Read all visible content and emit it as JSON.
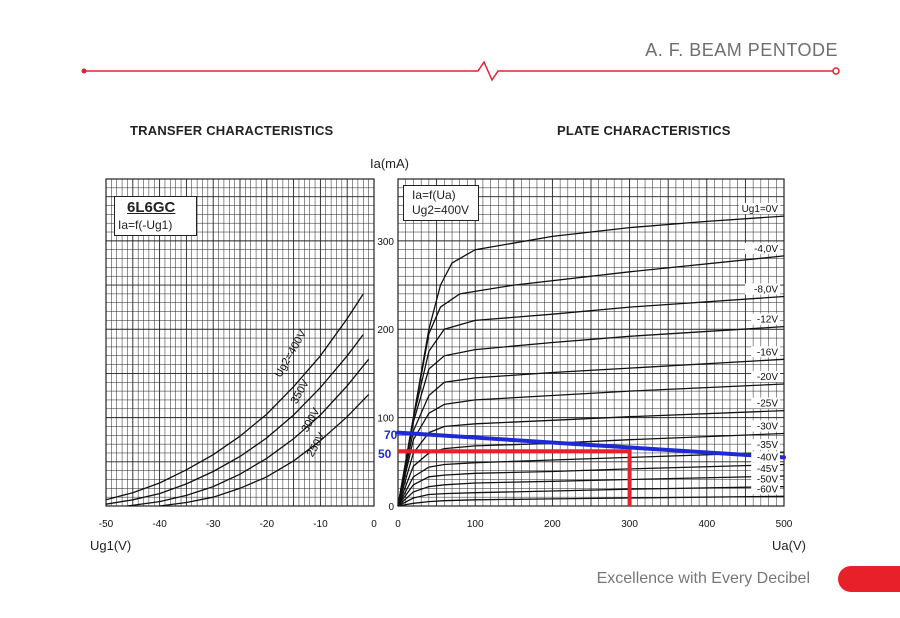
{
  "header": {
    "title": "A. F. BEAM PENTODE",
    "accent": "#e8202a"
  },
  "footer": {
    "tagline": "Excellence with Every Decibel"
  },
  "chart_data": [
    {
      "type": "line",
      "title": "TRANSFER CHARACTERISTICS",
      "tube": "6L6GC",
      "formula": "Ia=f(-Ug1)",
      "xlabel": "Ug1(V)",
      "ylabel": "Ia(mA)",
      "xlim": [
        -50,
        0
      ],
      "ylim": [
        0,
        370
      ],
      "x_ticks": [
        "-50",
        "-40",
        "-30",
        "-20",
        "-10",
        "0"
      ],
      "grid": true,
      "series": [
        {
          "name": "Ug2=400V",
          "points": [
            [
              -50,
              7
            ],
            [
              -45,
              15
            ],
            [
              -40,
              26
            ],
            [
              -35,
              41
            ],
            [
              -30,
              58
            ],
            [
              -25,
              79
            ],
            [
              -20,
              104
            ],
            [
              -15,
              135
            ],
            [
              -10,
              170
            ],
            [
              -5,
              212
            ],
            [
              -2,
              240
            ]
          ]
        },
        {
          "name": "350V",
          "points": [
            [
              -50,
              2
            ],
            [
              -45,
              7
            ],
            [
              -40,
              14
            ],
            [
              -35,
              25
            ],
            [
              -30,
              39
            ],
            [
              -25,
              56
            ],
            [
              -20,
              77
            ],
            [
              -15,
              103
            ],
            [
              -10,
              134
            ],
            [
              -5,
              170
            ],
            [
              -2,
              194
            ]
          ]
        },
        {
          "name": "300V",
          "points": [
            [
              -46,
              0
            ],
            [
              -40,
              5
            ],
            [
              -35,
              12
            ],
            [
              -30,
              22
            ],
            [
              -25,
              36
            ],
            [
              -20,
              54
            ],
            [
              -15,
              76
            ],
            [
              -10,
              103
            ],
            [
              -5,
              136
            ],
            [
              -1,
              166
            ]
          ]
        },
        {
          "name": "250V",
          "points": [
            [
              -40,
              0
            ],
            [
              -35,
              4
            ],
            [
              -30,
              10
            ],
            [
              -25,
              20
            ],
            [
              -20,
              33
            ],
            [
              -15,
              51
            ],
            [
              -10,
              74
            ],
            [
              -5,
              101
            ],
            [
              -1,
              126
            ]
          ]
        }
      ]
    },
    {
      "type": "line",
      "title": "PLATE CHARACTERISTICS",
      "formula": "Ia=f(Ua)",
      "condition": "Ug2=400V",
      "xlabel": "Ua(V)",
      "ylabel": "Ia(mA)",
      "xlim": [
        0,
        500
      ],
      "ylim": [
        0,
        370
      ],
      "x_ticks": [
        "0",
        "100",
        "200",
        "300",
        "400",
        "500"
      ],
      "y_ticks": [
        "0",
        "100",
        "200",
        "300"
      ],
      "grid": true,
      "series": [
        {
          "name": "Ug1=0V",
          "points": [
            [
              0,
              0
            ],
            [
              20,
              100
            ],
            [
              40,
              200
            ],
            [
              55,
              250
            ],
            [
              70,
              275
            ],
            [
              100,
              290
            ],
            [
              200,
              305
            ],
            [
              300,
              315
            ],
            [
              400,
              322
            ],
            [
              500,
              328
            ]
          ]
        },
        {
          "name": "-4,0V",
          "points": [
            [
              0,
              0
            ],
            [
              20,
              100
            ],
            [
              40,
              195
            ],
            [
              55,
              225
            ],
            [
              80,
              240
            ],
            [
              150,
              250
            ],
            [
              300,
              265
            ],
            [
              500,
              283
            ]
          ]
        },
        {
          "name": "-8,0V",
          "points": [
            [
              0,
              0
            ],
            [
              20,
              100
            ],
            [
              40,
              175
            ],
            [
              60,
              200
            ],
            [
              100,
              210
            ],
            [
              200,
              217
            ],
            [
              300,
              225
            ],
            [
              500,
              237
            ]
          ]
        },
        {
          "name": "-12V",
          "points": [
            [
              0,
              0
            ],
            [
              20,
              95
            ],
            [
              40,
              155
            ],
            [
              60,
              170
            ],
            [
              100,
              177
            ],
            [
              200,
              185
            ],
            [
              300,
              192
            ],
            [
              500,
              203
            ]
          ]
        },
        {
          "name": "-16V",
          "points": [
            [
              0,
              0
            ],
            [
              20,
              85
            ],
            [
              40,
              125
            ],
            [
              60,
              140
            ],
            [
              100,
              145
            ],
            [
              200,
              151
            ],
            [
              300,
              156
            ],
            [
              500,
              166
            ]
          ]
        },
        {
          "name": "-20V",
          "points": [
            [
              0,
              0
            ],
            [
              20,
              75
            ],
            [
              40,
              105
            ],
            [
              60,
              115
            ],
            [
              100,
              120
            ],
            [
              200,
              125
            ],
            [
              300,
              130
            ],
            [
              500,
              138
            ]
          ]
        },
        {
          "name": "-25V",
          "points": [
            [
              0,
              0
            ],
            [
              20,
              60
            ],
            [
              40,
              83
            ],
            [
              60,
              90
            ],
            [
              100,
              93
            ],
            [
              200,
              97
            ],
            [
              300,
              101
            ],
            [
              500,
              108
            ]
          ]
        },
        {
          "name": "-30V",
          "points": [
            [
              0,
              0
            ],
            [
              20,
              45
            ],
            [
              40,
              60
            ],
            [
              60,
              65
            ],
            [
              100,
              68
            ],
            [
              200,
              71
            ],
            [
              300,
              75
            ],
            [
              500,
              82
            ]
          ]
        },
        {
          "name": "-35V",
          "points": [
            [
              0,
              0
            ],
            [
              20,
              33
            ],
            [
              40,
              44
            ],
            [
              60,
              47
            ],
            [
              100,
              49
            ],
            [
              200,
              52
            ],
            [
              300,
              55
            ],
            [
              500,
              61
            ]
          ]
        },
        {
          "name": "-40V",
          "points": [
            [
              0,
              0
            ],
            [
              20,
              24
            ],
            [
              40,
              33
            ],
            [
              60,
              35
            ],
            [
              100,
              37
            ],
            [
              200,
              39
            ],
            [
              300,
              42
            ],
            [
              500,
              47
            ]
          ]
        },
        {
          "name": "-45V",
          "points": [
            [
              0,
              0
            ],
            [
              20,
              16
            ],
            [
              40,
              22
            ],
            [
              60,
              24
            ],
            [
              100,
              26
            ],
            [
              200,
              28
            ],
            [
              300,
              30
            ],
            [
              500,
              34
            ]
          ]
        },
        {
          "name": "-50V",
          "points": [
            [
              0,
              0
            ],
            [
              20,
              9
            ],
            [
              40,
              13
            ],
            [
              60,
              14
            ],
            [
              100,
              15
            ],
            [
              200,
              17
            ],
            [
              300,
              19
            ],
            [
              500,
              22
            ]
          ]
        },
        {
          "name": "-60V",
          "points": [
            [
              0,
              0
            ],
            [
              20,
              3
            ],
            [
              40,
              5
            ],
            [
              60,
              6
            ],
            [
              100,
              7
            ],
            [
              200,
              8
            ],
            [
              300,
              9
            ],
            [
              500,
              11
            ]
          ]
        }
      ],
      "annotations": {
        "load_line": {
          "color": "#1f2ad6",
          "label": "70",
          "points": [
            [
              0,
              83
            ],
            [
              500,
              55
            ]
          ]
        },
        "operating_point": {
          "color": "#e8202a",
          "label": "50",
          "points": [
            [
              0,
              62
            ],
            [
              300,
              62
            ],
            [
              300,
              0
            ]
          ]
        }
      }
    }
  ]
}
